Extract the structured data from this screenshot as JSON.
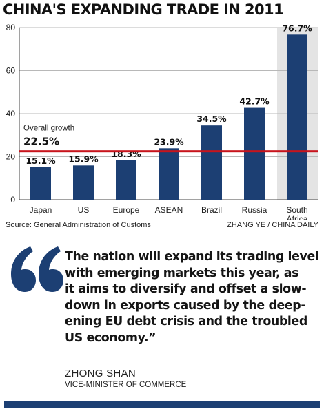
{
  "title": "CHINA'S EXPANDING TRADE IN 2011",
  "chart_data": {
    "type": "bar",
    "categories": [
      "Japan",
      "US",
      "Europe",
      "ASEAN",
      "Brazil",
      "Russia",
      "South Africa"
    ],
    "category_lines": [
      [
        "Japan"
      ],
      [
        "US"
      ],
      [
        "Europe"
      ],
      [
        "ASEAN"
      ],
      [
        "Brazil"
      ],
      [
        "Russia"
      ],
      [
        "South",
        "Africa"
      ]
    ],
    "values": [
      15.1,
      15.9,
      18.3,
      23.9,
      34.5,
      42.7,
      76.7
    ],
    "value_labels": [
      "15.1%",
      "15.9%",
      "18.3%",
      "23.9%",
      "34.5%",
      "42.7%",
      "76.7%"
    ],
    "ylim": [
      0,
      80
    ],
    "yticks": [
      0,
      20,
      40,
      60,
      80
    ],
    "grid": true,
    "highlight_category": "South Africa",
    "reference_line": {
      "label": "Overall growth",
      "value": 22.5,
      "value_label": "22.5%"
    },
    "colors": {
      "bar": "#1c3f73",
      "reference_line": "#c8141c",
      "grid": "#b8b8b8",
      "highlight_band": "#e4e4e4"
    }
  },
  "source": "Source: General Administration of Customs",
  "credit": "ZHANG YE / CHINA DAILY",
  "quote": {
    "text": "The nation will expand its trading level\nwith emerging markets this year, as\nit aims to diversify and offset a slow-\ndown in exports caused by the deep-\nening EU debt crisis and the troubled\nUS economy.”",
    "icon": "quotation-mark-icon",
    "icon_color": "#1c3f73",
    "speaker": "ZHONG SHAN",
    "speaker_title": "VICE-MINISTER OF COMMERCE"
  }
}
